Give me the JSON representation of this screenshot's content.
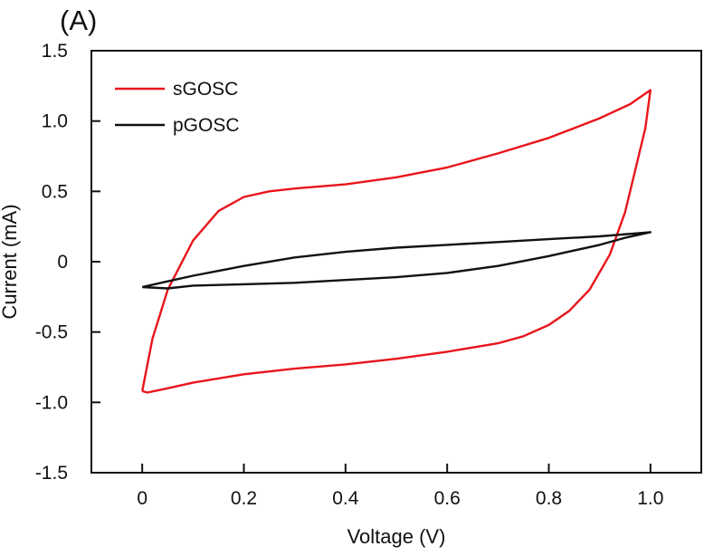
{
  "panel_label": "(A)",
  "chart_data": {
    "type": "line",
    "xlabel": "Voltage (V)",
    "ylabel": "Current (mA)",
    "xlim": [
      -0.1,
      1.1
    ],
    "ylim": [
      -1.5,
      1.5
    ],
    "xticks": [
      0,
      0.2,
      0.4,
      0.6,
      0.8,
      1.0
    ],
    "xtick_labels": [
      "0",
      "0.2",
      "0.4",
      "0.6",
      "0.8",
      "1.0"
    ],
    "yticks": [
      1.5,
      1.0,
      0.5,
      0,
      -0.5,
      -1.0,
      -1.5
    ],
    "ytick_labels": [
      "1.5",
      "1.0",
      "0.5",
      "0",
      "-0.5",
      "-1.0",
      "-1.5"
    ],
    "grid": false,
    "legend_position": "top-left",
    "colors": {
      "sGOSC": "#e8151b",
      "pGOSC": "#111111"
    },
    "series": [
      {
        "name": "sGOSC",
        "color": "#e8151b",
        "x": [
          0.0,
          0.02,
          0.05,
          0.1,
          0.15,
          0.2,
          0.25,
          0.3,
          0.4,
          0.5,
          0.6,
          0.7,
          0.8,
          0.9,
          0.96,
          1.0,
          0.99,
          0.97,
          0.95,
          0.92,
          0.88,
          0.84,
          0.8,
          0.75,
          0.7,
          0.6,
          0.5,
          0.4,
          0.3,
          0.2,
          0.1,
          0.05,
          0.01,
          0.0
        ],
        "y": [
          -0.92,
          -0.55,
          -0.2,
          0.15,
          0.36,
          0.46,
          0.5,
          0.52,
          0.55,
          0.6,
          0.67,
          0.77,
          0.88,
          1.02,
          1.12,
          1.22,
          0.95,
          0.65,
          0.35,
          0.05,
          -0.2,
          -0.35,
          -0.45,
          -0.53,
          -0.58,
          -0.64,
          -0.69,
          -0.73,
          -0.76,
          -0.8,
          -0.86,
          -0.9,
          -0.93,
          -0.92
        ]
      },
      {
        "name": "pGOSC",
        "color": "#111111",
        "x": [
          0.0,
          0.05,
          0.1,
          0.2,
          0.3,
          0.4,
          0.5,
          0.6,
          0.7,
          0.8,
          0.9,
          1.0,
          0.95,
          0.9,
          0.8,
          0.7,
          0.6,
          0.5,
          0.4,
          0.3,
          0.2,
          0.1,
          0.05,
          0.0
        ],
        "y": [
          -0.18,
          -0.14,
          -0.1,
          -0.03,
          0.03,
          0.07,
          0.1,
          0.12,
          0.14,
          0.16,
          0.18,
          0.21,
          0.17,
          0.12,
          0.04,
          -0.03,
          -0.08,
          -0.11,
          -0.13,
          -0.15,
          -0.16,
          -0.17,
          -0.19,
          -0.18
        ]
      }
    ]
  }
}
